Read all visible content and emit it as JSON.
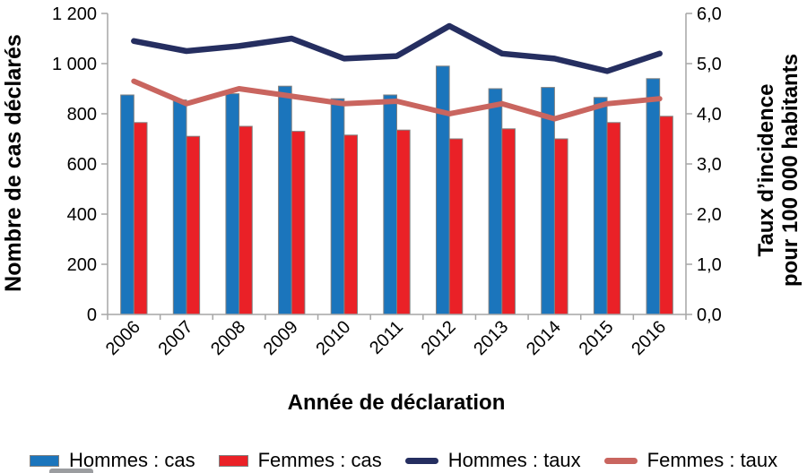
{
  "chart_data": {
    "type": "combo: grouped bar + line, dual y-axes",
    "title": "",
    "categories": [
      "2006",
      "2007",
      "2008",
      "2009",
      "2010",
      "2011",
      "2012",
      "2013",
      "2014",
      "2015",
      "2016"
    ],
    "x_axis": {
      "title": "Année de déclaration"
    },
    "left_axis": {
      "title": "Nombre de cas déclarés",
      "min": 0,
      "max": 1200,
      "tick_step": 200,
      "tick_labels": [
        "0",
        "200",
        "400",
        "600",
        "800",
        "1 000",
        "1 200"
      ]
    },
    "right_axis": {
      "title_line1": "Taux d’incidence",
      "title_line2": "pour 100 000 habitants",
      "min": 0,
      "max": 6,
      "tick_step": 1,
      "tick_labels": [
        "0,0",
        "1,0",
        "2,0",
        "3,0",
        "4,0",
        "5,0",
        "6,0"
      ]
    },
    "grid": "off",
    "legend_position": "bottom",
    "series": [
      {
        "name": "Hommes : cas",
        "kind": "bar",
        "axis": "left",
        "color": "#1B75BC",
        "values": [
          875,
          855,
          880,
          910,
          860,
          875,
          990,
          900,
          905,
          865,
          940
        ]
      },
      {
        "name": "Femmes : cas",
        "kind": "bar",
        "axis": "left",
        "color": "#EA2127",
        "values": [
          765,
          710,
          750,
          730,
          715,
          735,
          700,
          740,
          700,
          765,
          790
        ]
      },
      {
        "name": "Hommes : taux",
        "kind": "line",
        "axis": "right",
        "color": "#252E60",
        "values": [
          5.45,
          5.25,
          5.35,
          5.5,
          5.1,
          5.15,
          5.75,
          5.2,
          5.1,
          4.85,
          5.2
        ]
      },
      {
        "name": "Femmes : taux",
        "kind": "line",
        "axis": "right",
        "color": "#C9655F",
        "values": [
          4.65,
          4.2,
          4.5,
          4.35,
          4.2,
          4.25,
          4.0,
          4.2,
          3.9,
          4.2,
          4.3
        ]
      }
    ],
    "styles": {
      "axis_color": "#A6A6A6",
      "bar_outline_color": "#808080",
      "text_color": "#000000",
      "legend_fragment_color": "#9B9DA0"
    }
  }
}
